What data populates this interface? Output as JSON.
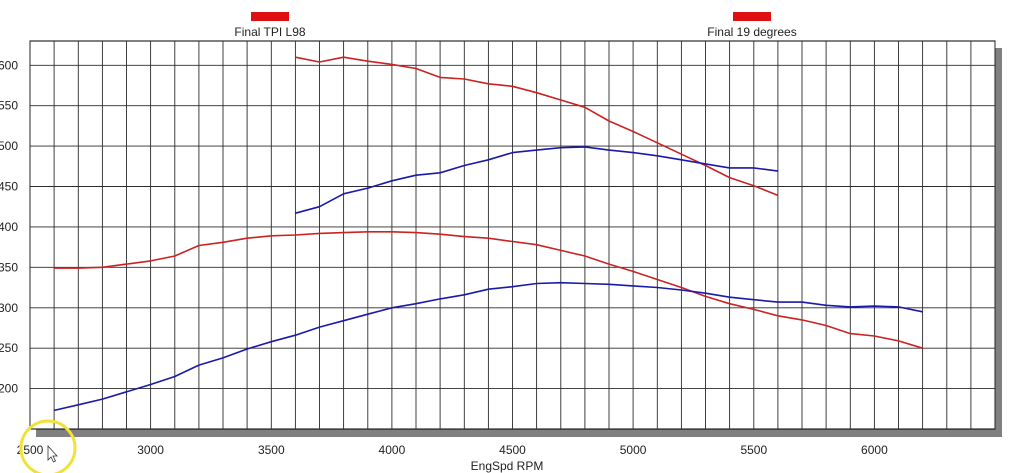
{
  "chart_data": {
    "type": "line",
    "xlabel": "EngSpd  RPM",
    "xlim": [
      2500,
      6500
    ],
    "ylim": [
      150,
      630
    ],
    "x_ticks": [
      2500,
      3000,
      3500,
      4000,
      4500,
      5000,
      5500,
      6000
    ],
    "y_ticks": [
      200,
      250,
      300,
      350,
      400,
      450,
      500,
      550,
      600
    ],
    "y_tick_labels": [
      "200",
      "250",
      "300",
      "350",
      "400",
      "450",
      "500",
      "550",
      "600"
    ],
    "grid": true,
    "legend": [
      {
        "name": "Final TPI L98",
        "color": "#dd1111"
      },
      {
        "name": "Final 19 degrees",
        "color": "#dd1111"
      }
    ],
    "series": [
      {
        "color": "#cc2222",
        "points": [
          [
            3600,
            610
          ],
          [
            3700,
            604
          ],
          [
            3800,
            610
          ],
          [
            3900,
            605
          ],
          [
            4000,
            601
          ],
          [
            4100,
            596
          ],
          [
            4200,
            585
          ],
          [
            4300,
            583
          ],
          [
            4400,
            577
          ],
          [
            4500,
            574
          ],
          [
            4600,
            566
          ],
          [
            4700,
            557
          ],
          [
            4800,
            548
          ],
          [
            4900,
            531
          ],
          [
            5000,
            518
          ],
          [
            5100,
            504
          ],
          [
            5200,
            490
          ],
          [
            5300,
            476
          ],
          [
            5400,
            461
          ],
          [
            5500,
            451
          ],
          [
            5600,
            439
          ]
        ]
      },
      {
        "color": "#1a1aaa",
        "points": [
          [
            3600,
            417
          ],
          [
            3700,
            425
          ],
          [
            3800,
            441
          ],
          [
            3900,
            448
          ],
          [
            4000,
            457
          ],
          [
            4100,
            464
          ],
          [
            4200,
            467
          ],
          [
            4300,
            476
          ],
          [
            4400,
            483
          ],
          [
            4500,
            492
          ],
          [
            4600,
            495
          ],
          [
            4700,
            498
          ],
          [
            4800,
            499
          ],
          [
            4900,
            495
          ],
          [
            5000,
            492
          ],
          [
            5100,
            488
          ],
          [
            5200,
            483
          ],
          [
            5300,
            478
          ],
          [
            5400,
            473
          ],
          [
            5500,
            473
          ],
          [
            5600,
            469
          ]
        ]
      },
      {
        "color": "#cc2222",
        "points": [
          [
            2600,
            349
          ],
          [
            2700,
            349
          ],
          [
            2800,
            350
          ],
          [
            2900,
            354
          ],
          [
            3000,
            358
          ],
          [
            3100,
            364
          ],
          [
            3200,
            377
          ],
          [
            3300,
            381
          ],
          [
            3400,
            386
          ],
          [
            3500,
            389
          ],
          [
            3600,
            390
          ],
          [
            3700,
            392
          ],
          [
            3800,
            393
          ],
          [
            3900,
            394
          ],
          [
            4000,
            394
          ],
          [
            4100,
            393
          ],
          [
            4200,
            391
          ],
          [
            4300,
            388
          ],
          [
            4400,
            386
          ],
          [
            4500,
            382
          ],
          [
            4600,
            378
          ],
          [
            4700,
            371
          ],
          [
            4800,
            364
          ],
          [
            4900,
            354
          ],
          [
            5000,
            345
          ],
          [
            5100,
            335
          ],
          [
            5200,
            325
          ],
          [
            5300,
            314
          ],
          [
            5400,
            305
          ],
          [
            5500,
            298
          ],
          [
            5600,
            290
          ],
          [
            5700,
            285
          ],
          [
            5800,
            278
          ],
          [
            5900,
            268
          ],
          [
            6000,
            265
          ],
          [
            6100,
            259
          ],
          [
            6200,
            250
          ]
        ]
      },
      {
        "color": "#1a1aaa",
        "points": [
          [
            2600,
            173
          ],
          [
            2700,
            180
          ],
          [
            2800,
            187
          ],
          [
            2900,
            196
          ],
          [
            3000,
            205
          ],
          [
            3100,
            215
          ],
          [
            3200,
            229
          ],
          [
            3300,
            238
          ],
          [
            3400,
            249
          ],
          [
            3500,
            258
          ],
          [
            3600,
            266
          ],
          [
            3700,
            276
          ],
          [
            3800,
            284
          ],
          [
            3900,
            292
          ],
          [
            4000,
            300
          ],
          [
            4100,
            305
          ],
          [
            4200,
            311
          ],
          [
            4300,
            316
          ],
          [
            4400,
            323
          ],
          [
            4500,
            326
          ],
          [
            4600,
            330
          ],
          [
            4700,
            331
          ],
          [
            4800,
            330
          ],
          [
            4900,
            329
          ],
          [
            5000,
            327
          ],
          [
            5100,
            325
          ],
          [
            5200,
            322
          ],
          [
            5300,
            318
          ],
          [
            5400,
            313
          ],
          [
            5500,
            310
          ],
          [
            5600,
            307
          ],
          [
            5700,
            307
          ],
          [
            5800,
            303
          ],
          [
            5900,
            301
          ],
          [
            6000,
            302
          ],
          [
            6100,
            301
          ],
          [
            6200,
            295
          ]
        ]
      }
    ]
  }
}
